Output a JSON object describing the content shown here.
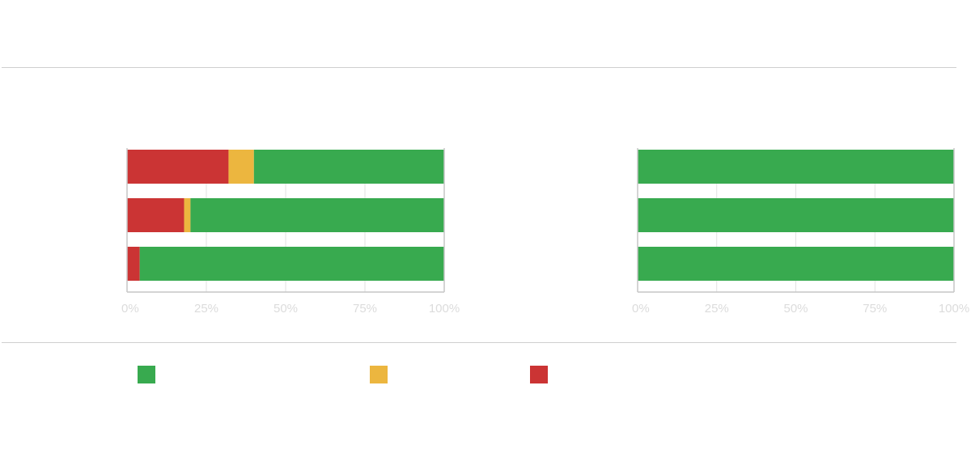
{
  "colors": {
    "green": "#38aa4f",
    "yellow": "#ecb63f",
    "red": "#cb3434",
    "grid": "#e2e2e2",
    "axis": "#c6c6c6",
    "tick_label": "#dcdcdc"
  },
  "legend": {
    "items": [
      {
        "name": "",
        "color": "#38aa4f"
      },
      {
        "name": "",
        "color": "#ecb63f"
      },
      {
        "name": "",
        "color": "#cb3434"
      }
    ]
  },
  "chart_data": [
    {
      "type": "bar",
      "orientation": "horizontal",
      "stacked": true,
      "title": "",
      "xlabel": "",
      "ylabel": "",
      "categories": [
        "",
        "",
        ""
      ],
      "xlim": [
        0,
        100
      ],
      "x_ticks": [
        "0%",
        "25%",
        "50%",
        "75%",
        "100%"
      ],
      "grid": true,
      "series": [
        {
          "color": "#cb3434",
          "values": [
            32,
            18,
            4
          ]
        },
        {
          "color": "#ecb63f",
          "values": [
            8,
            2,
            0
          ]
        },
        {
          "color": "#38aa4f",
          "values": [
            60,
            80,
            96
          ]
        }
      ]
    },
    {
      "type": "bar",
      "orientation": "horizontal",
      "stacked": true,
      "title": "",
      "xlabel": "",
      "ylabel": "",
      "categories": [
        "",
        "",
        ""
      ],
      "xlim": [
        0,
        100
      ],
      "x_ticks": [
        "0%",
        "25%",
        "50%",
        "75%",
        "100%"
      ],
      "grid": true,
      "series": [
        {
          "color": "#cb3434",
          "values": [
            0,
            0,
            0
          ]
        },
        {
          "color": "#ecb63f",
          "values": [
            0,
            0,
            0
          ]
        },
        {
          "color": "#38aa4f",
          "values": [
            100,
            100,
            100
          ]
        }
      ]
    }
  ]
}
